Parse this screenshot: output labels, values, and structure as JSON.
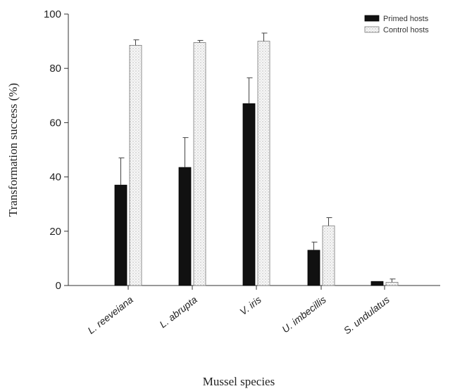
{
  "chart_data": {
    "type": "bar",
    "title": "",
    "xlabel": "Mussel species",
    "ylabel": "Transformation success (%)",
    "ylim": [
      0,
      100
    ],
    "yticks": [
      0,
      20,
      40,
      60,
      80,
      100
    ],
    "categories": [
      "L. reeveiana",
      "L. abrupta",
      "V. iris",
      "U. imbecillis",
      "S. undulatus"
    ],
    "series": [
      {
        "name": "Primed hosts",
        "values": [
          37,
          43.5,
          67,
          13,
          1.5
        ],
        "errors": [
          10,
          11,
          9.5,
          3,
          0
        ],
        "color": "#111111"
      },
      {
        "name": "Control hosts",
        "values": [
          88.5,
          89.5,
          90,
          22,
          1.2
        ],
        "errors": [
          2,
          0.8,
          3,
          3,
          1.2
        ],
        "color": "#f2f2f2"
      }
    ],
    "legend": "top-right",
    "grid": false
  }
}
